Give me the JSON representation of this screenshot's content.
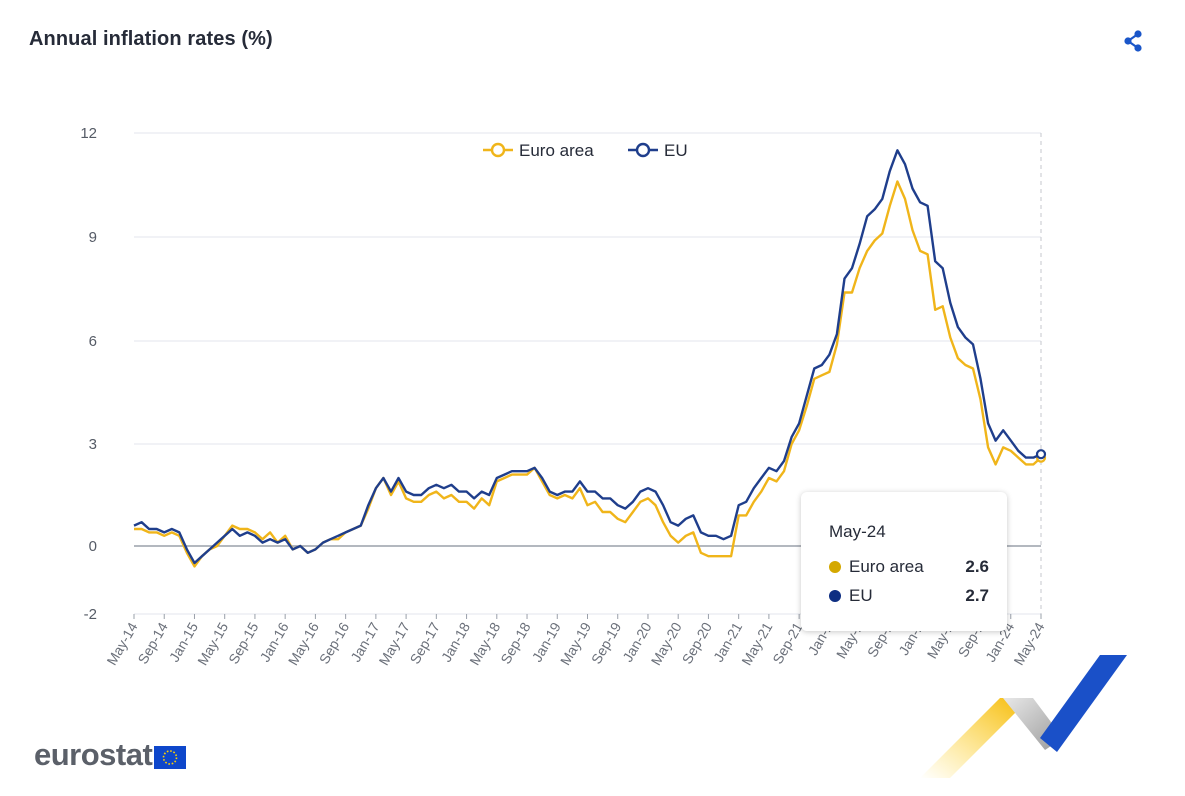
{
  "header": {
    "title": "Annual inflation rates (%)",
    "share_icon": "share-icon"
  },
  "colors": {
    "euro_area": "#f0b51a",
    "eu": "#1f3e8c",
    "grid": "#e3e6ee",
    "axis": "#9aa0aa"
  },
  "tooltip": {
    "period": "May-24",
    "rows": [
      {
        "name": "Euro area",
        "value": "2.6",
        "color": "#d4a800"
      },
      {
        "name": "EU",
        "value": "2.7",
        "color": "#0e2e82"
      }
    ]
  },
  "footer": {
    "logo_text": "eurostat",
    "flag_icon": "eu-flag-icon"
  },
  "chart_data": {
    "type": "line",
    "title": "Annual inflation rates (%)",
    "ylim": [
      -2,
      12
    ],
    "yticks": [
      -2,
      0,
      3,
      6,
      9,
      12
    ],
    "grid": true,
    "legend_position": "top-center",
    "x": [
      "May-14",
      "Jun-14",
      "Jul-14",
      "Aug-14",
      "Sep-14",
      "Oct-14",
      "Nov-14",
      "Dec-14",
      "Jan-15",
      "Feb-15",
      "Mar-15",
      "Apr-15",
      "May-15",
      "Jun-15",
      "Jul-15",
      "Aug-15",
      "Sep-15",
      "Oct-15",
      "Nov-15",
      "Dec-15",
      "Jan-16",
      "Feb-16",
      "Mar-16",
      "Apr-16",
      "May-16",
      "Jun-16",
      "Jul-16",
      "Aug-16",
      "Sep-16",
      "Oct-16",
      "Nov-16",
      "Dec-16",
      "Jan-17",
      "Feb-17",
      "Mar-17",
      "Apr-17",
      "May-17",
      "Jun-17",
      "Jul-17",
      "Aug-17",
      "Sep-17",
      "Oct-17",
      "Nov-17",
      "Dec-17",
      "Jan-18",
      "Feb-18",
      "Mar-18",
      "Apr-18",
      "May-18",
      "Jun-18",
      "Jul-18",
      "Aug-18",
      "Sep-18",
      "Oct-18",
      "Nov-18",
      "Dec-18",
      "Jan-19",
      "Feb-19",
      "Mar-19",
      "Apr-19",
      "May-19",
      "Jun-19",
      "Jul-19",
      "Aug-19",
      "Sep-19",
      "Oct-19",
      "Nov-19",
      "Dec-19",
      "Jan-20",
      "Feb-20",
      "Mar-20",
      "Apr-20",
      "May-20",
      "Jun-20",
      "Jul-20",
      "Aug-20",
      "Sep-20",
      "Oct-20",
      "Nov-20",
      "Dec-20",
      "Jan-21",
      "Feb-21",
      "Mar-21",
      "Apr-21",
      "May-21",
      "Jun-21",
      "Jul-21",
      "Aug-21",
      "Sep-21",
      "Oct-21",
      "Nov-21",
      "Dec-21",
      "Jan-22",
      "Feb-22",
      "Mar-22",
      "Apr-22",
      "May-22",
      "Jun-22",
      "Jul-22",
      "Aug-22",
      "Sep-22",
      "Oct-22",
      "Nov-22",
      "Dec-22",
      "Jan-23",
      "Feb-23",
      "Mar-23",
      "Apr-23",
      "May-23",
      "Jun-23",
      "Jul-23",
      "Aug-23",
      "Sep-23",
      "Oct-23",
      "Nov-23",
      "Dec-23",
      "Jan-24",
      "Feb-24",
      "Mar-24",
      "Apr-24",
      "May-24"
    ],
    "x_tick_labels": [
      "May-14",
      "Sep-14",
      "Jan-15",
      "May-15",
      "Sep-15",
      "Jan-16",
      "May-16",
      "Sep-16",
      "Jan-17",
      "May-17",
      "Sep-17",
      "Jan-18",
      "May-18",
      "Sep-18",
      "Jan-19",
      "May-19",
      "Sep-19",
      "Jan-20",
      "May-20",
      "Sep-20",
      "Jan-21",
      "May-21",
      "Sep-21",
      "Jan-2",
      "May-2",
      "Sep-2",
      "Jan-2",
      "May-2",
      "Sep-2",
      "Jan-24",
      "May-24"
    ],
    "series": [
      {
        "name": "Euro area",
        "values": [
          0.5,
          0.5,
          0.4,
          0.4,
          0.3,
          0.4,
          0.3,
          -0.2,
          -0.6,
          -0.3,
          -0.1,
          0.0,
          0.3,
          0.6,
          0.5,
          0.5,
          0.4,
          0.2,
          0.4,
          0.1,
          0.3,
          -0.1,
          0.0,
          -0.2,
          -0.1,
          0.1,
          0.2,
          0.2,
          0.4,
          0.5,
          0.6,
          1.1,
          1.7,
          2.0,
          1.5,
          1.9,
          1.4,
          1.3,
          1.3,
          1.5,
          1.6,
          1.4,
          1.5,
          1.3,
          1.3,
          1.1,
          1.4,
          1.2,
          1.9,
          2.0,
          2.1,
          2.1,
          2.1,
          2.3,
          1.9,
          1.5,
          1.4,
          1.5,
          1.4,
          1.7,
          1.2,
          1.3,
          1.0,
          1.0,
          0.8,
          0.7,
          1.0,
          1.3,
          1.4,
          1.2,
          0.7,
          0.3,
          0.1,
          0.3,
          0.4,
          -0.2,
          -0.3,
          -0.3,
          -0.3,
          -0.3,
          0.9,
          0.9,
          1.3,
          1.6,
          2.0,
          1.9,
          2.2,
          3.0,
          3.4,
          4.1,
          4.9,
          5.0,
          5.1,
          5.9,
          7.4,
          7.4,
          8.1,
          8.6,
          8.9,
          9.1,
          9.9,
          10.6,
          10.1,
          9.2,
          8.6,
          8.5,
          6.9,
          7.0,
          6.1,
          5.5,
          5.3,
          5.2,
          4.3,
          2.9,
          2.4,
          2.9,
          2.8,
          2.6,
          2.4,
          2.4,
          2.6
        ],
        "color": "#f0b51a"
      },
      {
        "name": "EU",
        "values": [
          0.6,
          0.7,
          0.5,
          0.5,
          0.4,
          0.5,
          0.4,
          -0.1,
          -0.5,
          -0.3,
          -0.1,
          0.1,
          0.3,
          0.5,
          0.3,
          0.4,
          0.3,
          0.1,
          0.2,
          0.1,
          0.2,
          -0.1,
          0.0,
          -0.2,
          -0.1,
          0.1,
          0.2,
          0.3,
          0.4,
          0.5,
          0.6,
          1.2,
          1.7,
          2.0,
          1.6,
          2.0,
          1.6,
          1.5,
          1.5,
          1.7,
          1.8,
          1.7,
          1.8,
          1.6,
          1.6,
          1.4,
          1.6,
          1.5,
          2.0,
          2.1,
          2.2,
          2.2,
          2.2,
          2.3,
          2.0,
          1.6,
          1.5,
          1.6,
          1.6,
          1.9,
          1.6,
          1.6,
          1.4,
          1.4,
          1.2,
          1.1,
          1.3,
          1.6,
          1.7,
          1.6,
          1.2,
          0.7,
          0.6,
          0.8,
          0.9,
          0.4,
          0.3,
          0.3,
          0.2,
          0.3,
          1.2,
          1.3,
          1.7,
          2.0,
          2.3,
          2.2,
          2.5,
          3.2,
          3.6,
          4.4,
          5.2,
          5.3,
          5.6,
          6.2,
          7.8,
          8.1,
          8.8,
          9.6,
          9.8,
          10.1,
          10.9,
          11.5,
          11.1,
          10.4,
          10.0,
          9.9,
          8.3,
          8.1,
          7.1,
          6.4,
          6.1,
          5.9,
          4.9,
          3.6,
          3.1,
          3.4,
          3.1,
          2.8,
          2.6,
          2.6,
          2.7
        ],
        "color": "#1f3e8c"
      }
    ]
  }
}
